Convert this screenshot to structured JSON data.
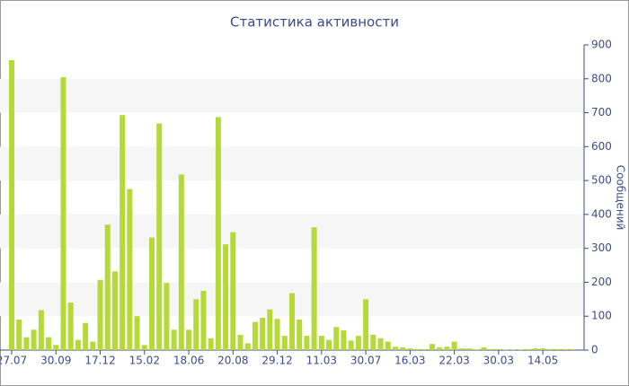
{
  "chart_data": {
    "type": "bar",
    "title": "Статистика активности",
    "y_axis_label": "Сообщений",
    "categories": [
      "27.07",
      null,
      null,
      null,
      null,
      null,
      "30.09",
      null,
      null,
      null,
      null,
      null,
      "17.12",
      null,
      null,
      null,
      null,
      null,
      "15.02",
      null,
      null,
      null,
      null,
      null,
      "18.06",
      null,
      null,
      null,
      null,
      null,
      "20.08",
      null,
      null,
      null,
      null,
      null,
      "29.12",
      null,
      null,
      null,
      null,
      null,
      "11.03",
      null,
      null,
      null,
      null,
      null,
      "30.07",
      null,
      null,
      null,
      null,
      null,
      "16.03",
      null,
      null,
      null,
      null,
      null,
      "22.03",
      null,
      null,
      null,
      null,
      null,
      "30.03",
      null,
      null,
      null,
      null,
      null,
      "14.05",
      null,
      null,
      null,
      null
    ],
    "values": [
      855,
      90,
      38,
      60,
      118,
      38,
      15,
      805,
      140,
      30,
      80,
      25,
      207,
      370,
      232,
      693,
      475,
      100,
      15,
      332,
      668,
      198,
      60,
      518,
      60,
      150,
      175,
      35,
      687,
      312,
      348,
      45,
      20,
      83,
      95,
      120,
      92,
      42,
      168,
      90,
      42,
      362,
      42,
      30,
      68,
      58,
      28,
      42,
      150,
      45,
      35,
      25,
      10,
      8,
      5,
      3,
      3,
      18,
      8,
      10,
      25,
      5,
      5,
      2,
      8,
      3,
      3,
      2,
      2,
      2,
      3,
      5,
      5,
      3,
      3,
      3,
      3
    ],
    "color": "#b6d93a",
    "ylim": [
      0,
      900
    ],
    "yticks": [
      0,
      100,
      200,
      300,
      400,
      500,
      600,
      700,
      800,
      900
    ],
    "grid": "bands",
    "y_axis_side": "right"
  }
}
